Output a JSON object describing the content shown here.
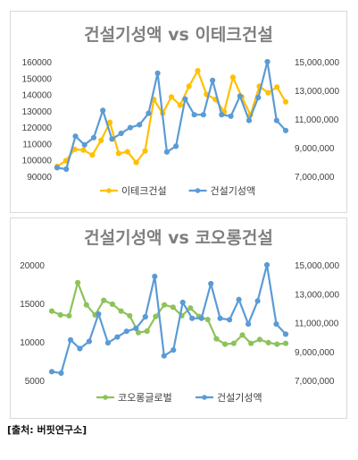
{
  "source_note": "[출처: 버핏연구소]",
  "chart_data": [
    {
      "type": "line",
      "title": "건설기성액 vs 이테크건설",
      "y_left": {
        "min": 90000,
        "max": 160000,
        "step": 10000,
        "ticks": [
          "160000",
          "150000",
          "140000",
          "130000",
          "120000",
          "110000",
          "100000",
          "90000"
        ]
      },
      "y_right": {
        "min": 7000000,
        "max": 15000000,
        "step": 2000000,
        "ticks": [
          "15,000,000",
          "13,000,000",
          "11,000,000",
          "9,000,000",
          "7,000,000"
        ]
      },
      "legend_position": "bottom",
      "series": [
        {
          "name": "이테크건설",
          "axis": "left",
          "color": "#ffc000",
          "values": [
            96000,
            99500,
            106500,
            106000,
            103000,
            112000,
            123000,
            104000,
            105000,
            98500,
            105500,
            137000,
            128500,
            138500,
            133500,
            145000,
            154500,
            140000,
            137000,
            129500,
            150500,
            138500,
            127500,
            145000,
            141000,
            144500,
            135500
          ]
        },
        {
          "name": "건설기성액",
          "axis": "right",
          "color": "#5b9bd5",
          "values": [
            7600000,
            7500000,
            9800000,
            9200000,
            9700000,
            11600000,
            9600000,
            10000000,
            10400000,
            10600000,
            11400000,
            14200000,
            8700000,
            9100000,
            12400000,
            11300000,
            11300000,
            13700000,
            11300000,
            11200000,
            12600000,
            10900000,
            12500000,
            15000000,
            10900000,
            10200000
          ]
        }
      ]
    },
    {
      "type": "line",
      "title": "건설기성액 vs 코오롱건설",
      "y_left": {
        "min": 5000,
        "max": 20000,
        "step": 5000,
        "ticks": [
          "20000",
          "15000",
          "10000",
          "5000"
        ]
      },
      "y_right": {
        "min": 7000000,
        "max": 15000000,
        "step": 2000000,
        "ticks": [
          "15,000,000",
          "13,000,000",
          "11,000,000",
          "9,000,000",
          "7,000,000"
        ]
      },
      "legend_position": "bottom",
      "series": [
        {
          "name": "코오롱글로벌",
          "axis": "left",
          "color": "#8dc35a",
          "values": [
            14000,
            13500,
            13400,
            17700,
            14800,
            13500,
            15400,
            14900,
            14000,
            13400,
            11200,
            11400,
            13300,
            14800,
            14500,
            13400,
            14400,
            13300,
            12900,
            10400,
            9700,
            9800,
            10900,
            9800,
            10300,
            9900,
            9700,
            9800
          ]
        },
        {
          "name": "건설기성액",
          "axis": "right",
          "color": "#5b9bd5",
          "values": [
            7600000,
            7500000,
            9800000,
            9200000,
            9700000,
            11600000,
            9600000,
            10000000,
            10400000,
            10600000,
            11400000,
            14200000,
            8700000,
            9100000,
            12400000,
            11300000,
            11300000,
            13700000,
            11300000,
            11200000,
            12600000,
            10900000,
            12500000,
            15000000,
            10900000,
            10200000
          ]
        }
      ]
    }
  ]
}
